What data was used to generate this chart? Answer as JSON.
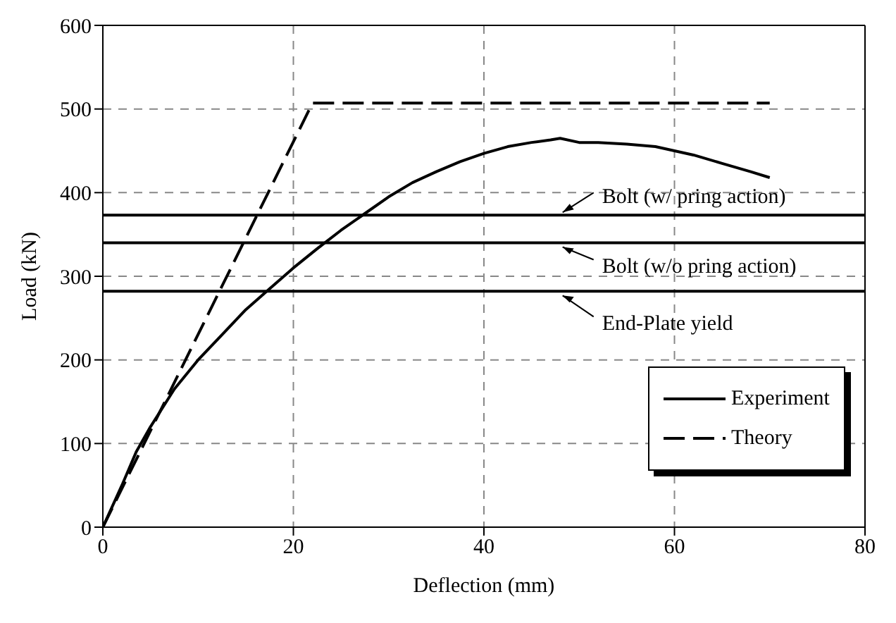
{
  "chart_data": {
    "type": "line",
    "xlabel": "Deflection (mm)",
    "ylabel": "Load (kN)",
    "xlim": [
      0,
      80
    ],
    "xticks": [
      0,
      20,
      40,
      60,
      80
    ],
    "ylim": [
      0,
      600
    ],
    "yticks": [
      0,
      100,
      200,
      300,
      400,
      500,
      600
    ],
    "grid": true,
    "legend": "bottom right",
    "marker": "none",
    "series": [
      {
        "name": "Experiment",
        "color": "#000000",
        "line_style": "solid",
        "x": [
          0,
          1,
          2,
          3.5,
          5,
          7.5,
          10,
          12.5,
          15,
          17.5,
          20,
          22.5,
          25,
          27.5,
          30,
          32.5,
          35,
          37.5,
          40,
          42.5,
          45,
          47,
          48,
          50,
          52,
          55,
          58,
          60,
          62,
          65,
          68,
          70
        ],
        "values": [
          0,
          25,
          50,
          90,
          120,
          165,
          200,
          230,
          260,
          285,
          310,
          333,
          355,
          375,
          395,
          412,
          425,
          437,
          447,
          455,
          460,
          463,
          465,
          460,
          460,
          458,
          455,
          450,
          445,
          435,
          425,
          418
        ]
      },
      {
        "name": "Theory",
        "color": "#000000",
        "line_style": "dashed",
        "x": [
          0,
          22,
          70
        ],
        "values": [
          0,
          507,
          507
        ]
      }
    ],
    "ref_lines": [
      {
        "axis": "y",
        "value": 373,
        "label": "Bolt (w/ pring action)",
        "color": "#000000"
      },
      {
        "axis": "y",
        "value": 340,
        "label": "Bolt (w/o pring action)",
        "color": "#000000"
      },
      {
        "axis": "y",
        "value": 282,
        "label": "End-Plate yield",
        "color": "#000000"
      }
    ]
  }
}
